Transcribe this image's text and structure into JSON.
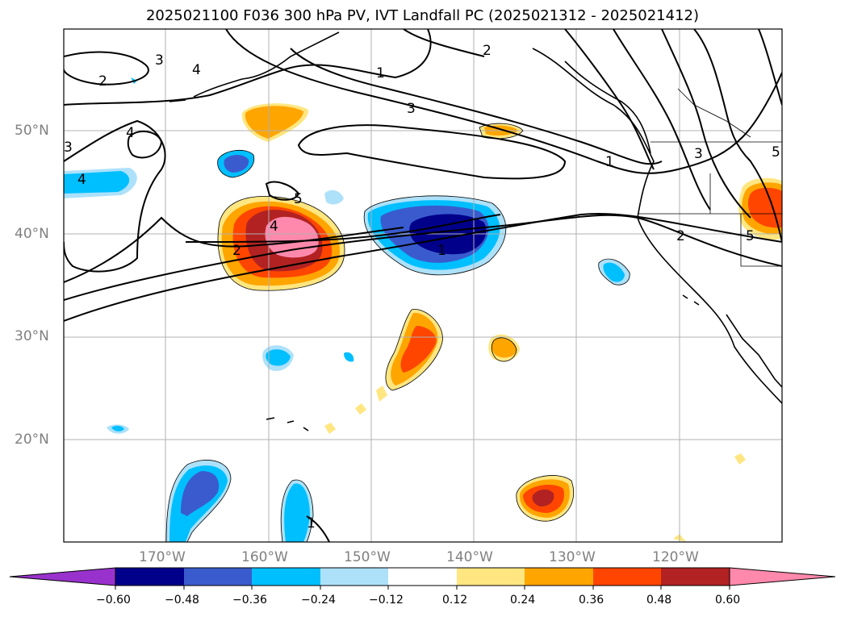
{
  "title": "2025021100 F036 300 hPa PV, IVT Landfall PC (2025021312 - 2025021412)",
  "map": {
    "lat_labels": [
      "50°N",
      "40°N",
      "30°N",
      "20°N"
    ],
    "lon_labels": [
      "170°W",
      "160°W",
      "150°W",
      "140°W",
      "130°W",
      "120°W"
    ],
    "pv_contour_labels": [
      "2",
      "3",
      "4",
      "1",
      "3",
      "2",
      "1",
      "4",
      "5",
      "3",
      "4",
      "5",
      "2",
      "4",
      "1",
      "3",
      "2",
      "5",
      "1"
    ]
  },
  "colorbar": {
    "ticks": [
      "−0.60",
      "−0.48",
      "−0.36",
      "−0.24",
      "−0.12",
      "0.12",
      "0.24",
      "0.36",
      "0.48",
      "0.60"
    ],
    "colors": [
      "#9932CC",
      "#00008B",
      "#3A5BCD",
      "#00BFFF",
      "#ADE1FA",
      "#FFFFFF",
      "#FFE680",
      "#FFA500",
      "#FF4500",
      "#B22222",
      "#FF89AC"
    ]
  }
}
